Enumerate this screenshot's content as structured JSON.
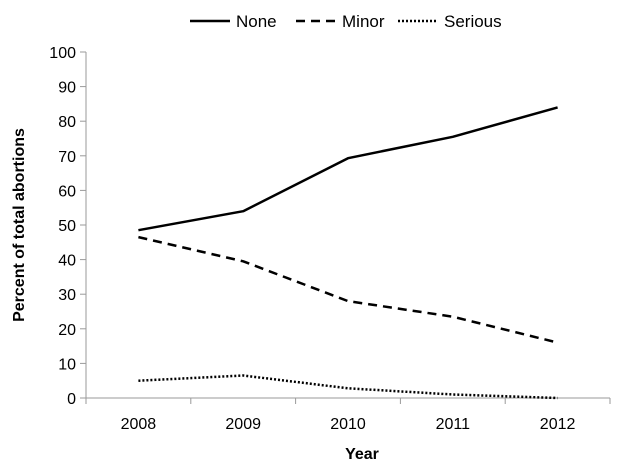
{
  "chart_data": {
    "type": "line",
    "title": "",
    "xlabel": "Year",
    "ylabel": "Percent of total abortions",
    "categories": [
      "2008",
      "2009",
      "2010",
      "2011",
      "2012"
    ],
    "ylim": [
      0,
      100
    ],
    "yticks": [
      "0",
      "10",
      "20",
      "30",
      "40",
      "50",
      "60",
      "70",
      "80",
      "90",
      "100"
    ],
    "grid": false,
    "legend_position": "top-center",
    "series": [
      {
        "name": "None",
        "style": "solid",
        "color": "#000000",
        "values": [
          48.5,
          54,
          69.3,
          75.5,
          84
        ]
      },
      {
        "name": "Minor",
        "style": "dashed",
        "color": "#000000",
        "values": [
          46.5,
          39.5,
          28,
          23.5,
          16
        ]
      },
      {
        "name": "Serious",
        "style": "dotted",
        "color": "#000000",
        "values": [
          5,
          6.5,
          2.8,
          1,
          0
        ]
      }
    ]
  }
}
